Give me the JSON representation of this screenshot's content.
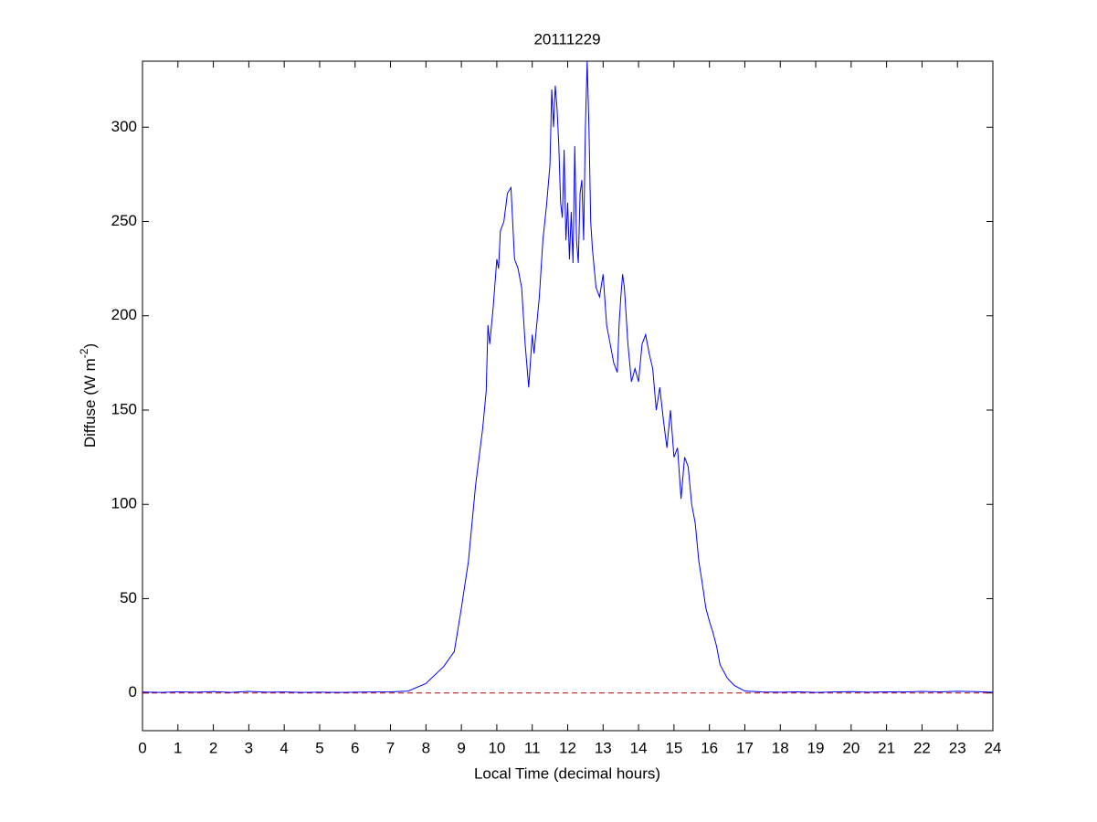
{
  "chart_data": {
    "type": "line",
    "title": "20111229",
    "xlabel": "Local Time (decimal hours)",
    "ylabel": {
      "text": "Diffuse (W m",
      "superscript": "-2",
      "suffix": ")"
    },
    "x": [
      0,
      0.5,
      1,
      1.5,
      2,
      2.5,
      3,
      3.5,
      4,
      4.5,
      5,
      5.5,
      6,
      6.5,
      7,
      7.5,
      8,
      8.5,
      8.8,
      9.0,
      9.2,
      9.4,
      9.6,
      9.7,
      9.75,
      9.8,
      9.9,
      10.0,
      10.05,
      10.1,
      10.2,
      10.3,
      10.4,
      10.5,
      10.6,
      10.7,
      10.8,
      10.9,
      11.0,
      11.05,
      11.2,
      11.3,
      11.4,
      11.5,
      11.55,
      11.6,
      11.65,
      11.7,
      11.75,
      11.8,
      11.85,
      11.9,
      11.95,
      12.0,
      12.05,
      12.1,
      12.15,
      12.2,
      12.25,
      12.3,
      12.35,
      12.4,
      12.45,
      12.5,
      12.55,
      12.6,
      12.65,
      12.7,
      12.8,
      12.9,
      13.0,
      13.1,
      13.2,
      13.3,
      13.4,
      13.45,
      13.5,
      13.55,
      13.6,
      13.7,
      13.8,
      13.9,
      14.0,
      14.1,
      14.2,
      14.3,
      14.4,
      14.5,
      14.6,
      14.7,
      14.8,
      14.9,
      15.0,
      15.1,
      15.2,
      15.3,
      15.4,
      15.5,
      15.6,
      15.7,
      15.8,
      15.9,
      16.0,
      16.1,
      16.2,
      16.3,
      16.5,
      16.7,
      16.9,
      17.0,
      17.5,
      18,
      18.5,
      19,
      19.5,
      20,
      20.5,
      21,
      21.5,
      22,
      22.5,
      23,
      23.5,
      24
    ],
    "series": [
      {
        "color": "#0000ff",
        "values": [
          0.5,
          0.3,
          0.6,
          0.4,
          0.7,
          0.3,
          0.8,
          0.4,
          0.5,
          0.3,
          0.4,
          0.3,
          0.4,
          0.5,
          0.6,
          1,
          5,
          14,
          22,
          45,
          70,
          110,
          140,
          160,
          195,
          185,
          205,
          230,
          225,
          245,
          250,
          265,
          268,
          230,
          225,
          215,
          185,
          162,
          190,
          180,
          210,
          240,
          258,
          280,
          320,
          300,
          322,
          310,
          290,
          260,
          252,
          288,
          240,
          260,
          230,
          255,
          228,
          290,
          240,
          228,
          265,
          272,
          240,
          300,
          335,
          300,
          250,
          235,
          215,
          210,
          222,
          195,
          185,
          175,
          170,
          195,
          210,
          222,
          215,
          185,
          165,
          172,
          165,
          185,
          190,
          180,
          172,
          150,
          162,
          145,
          130,
          150,
          125,
          130,
          103,
          125,
          120,
          100,
          90,
          70,
          58,
          45,
          38,
          32,
          25,
          15,
          8,
          4,
          2,
          1,
          0.5,
          0.4,
          0.6,
          0.3,
          0.5,
          0.7,
          0.4,
          0.6,
          0.5,
          0.8,
          0.6,
          0.9,
          0.7,
          0.4
        ]
      }
    ],
    "reference_line": {
      "value": 0,
      "color": "#c00000",
      "style": "dashed"
    },
    "xlim": [
      0,
      24
    ],
    "xticks": [
      0,
      1,
      2,
      3,
      4,
      5,
      6,
      7,
      8,
      9,
      10,
      11,
      12,
      13,
      14,
      15,
      16,
      17,
      18,
      19,
      20,
      21,
      22,
      23,
      24
    ],
    "ylim": [
      -20,
      335
    ],
    "yticks": [
      0,
      50,
      100,
      150,
      200,
      250,
      300
    ],
    "grid": false
  }
}
